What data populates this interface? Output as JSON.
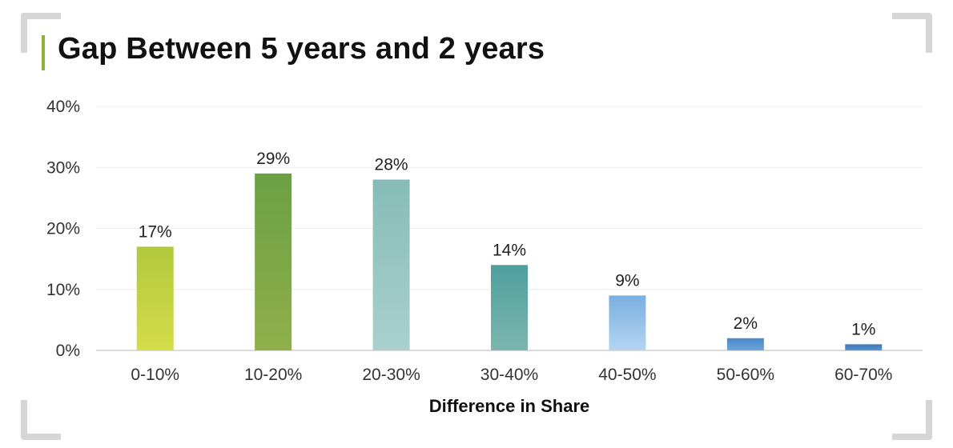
{
  "chart_data": {
    "type": "bar",
    "title": "Gap Between 5 years and 2 years",
    "xlabel": "Difference in Share",
    "ylabel": "",
    "ylim": [
      0,
      40
    ],
    "yticks": [
      "0%",
      "10%",
      "20%",
      "30%",
      "40%"
    ],
    "ytick_values": [
      0,
      10,
      20,
      30,
      40
    ],
    "grid": true,
    "categories": [
      "0-10%",
      "10-20%",
      "20-30%",
      "30-40%",
      "40-50%",
      "50-60%",
      "60-70%"
    ],
    "values": [
      17,
      29,
      28,
      14,
      9,
      2,
      1
    ],
    "value_labels": [
      "17%",
      "29%",
      "28%",
      "14%",
      "9%",
      "2%",
      "1%"
    ],
    "bar_colors": [
      [
        "#b0c93c",
        "#d5dc48"
      ],
      [
        "#6ba043",
        "#8fb04a"
      ],
      [
        "#86bcb5",
        "#a9d0cc"
      ],
      [
        "#4f9e9f",
        "#7cb6ae"
      ],
      [
        "#7aaedf",
        "#b3d5f2"
      ],
      [
        "#4a88c8",
        "#6fa5db"
      ],
      [
        "#3b76b4",
        "#5b92cf"
      ]
    ],
    "colors": {
      "title_accent": "#8cb33d",
      "gridline": "#ececec",
      "axis": "#d0d0d0"
    }
  }
}
